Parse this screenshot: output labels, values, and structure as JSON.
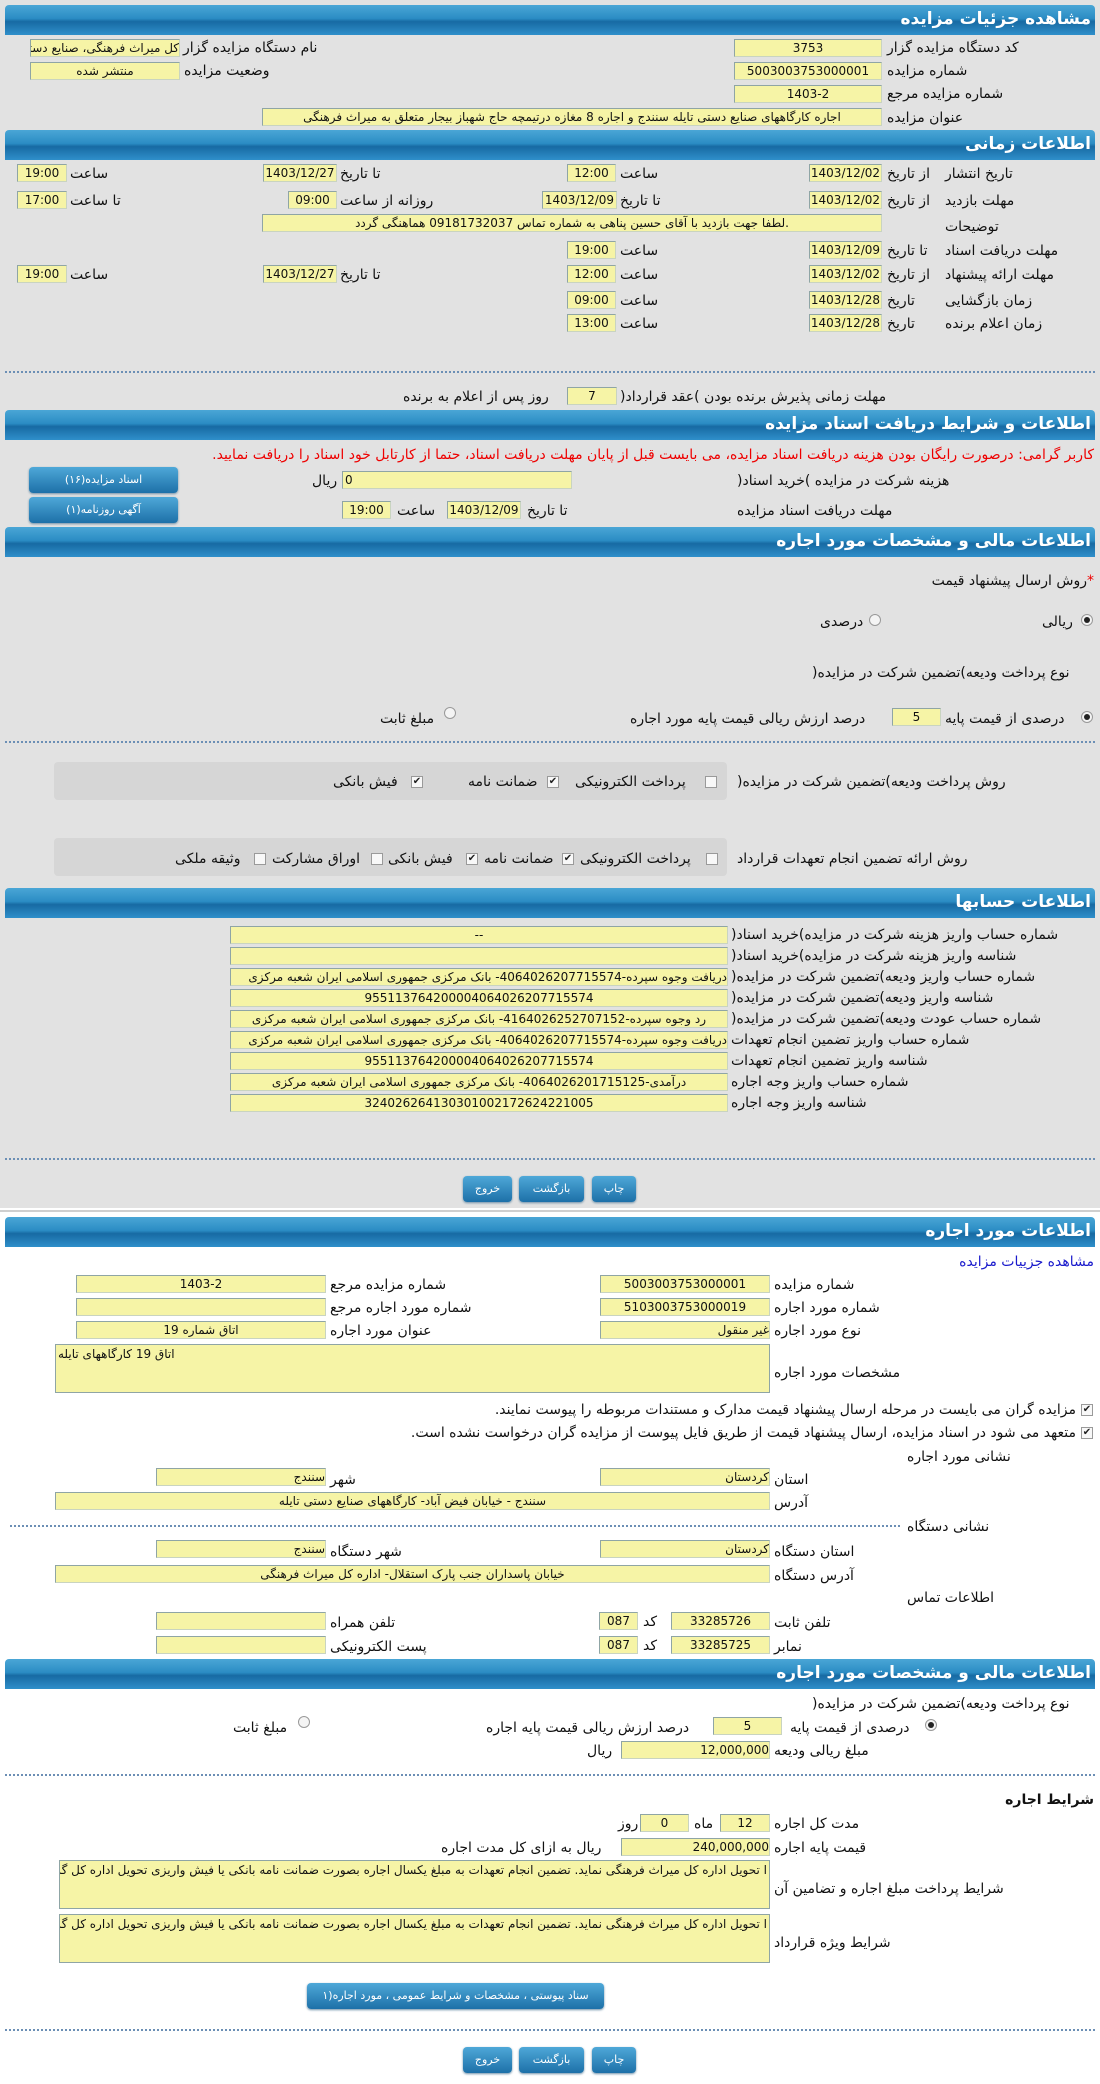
{
  "colors": {
    "header": "#2b8cc4",
    "field_bg": "#f6f4a6",
    "warning": "#ee0000",
    "link": "#1a1acc"
  },
  "s1": {
    "title": "مشاهده جزئیات مزایده",
    "org_code_label": "کد دستگاه مزایده گزار",
    "org_code": "3753",
    "org_name_label": "نام دستگاه مزایده گزار",
    "org_name": "کل میراث فرهنگی، صنایع دستی و گردشگری",
    "auction_no_label": "شماره مزایده",
    "auction_no": "5003003753000001",
    "status_label": "وضعیت مزایده",
    "status": "منتشر شده",
    "ref_no_label": "شماره مزایده مرجع",
    "ref_no": "1403-2",
    "title_label": "عنوان مزایده",
    "auction_title": "اجاره کارگاههای صنایع دستی تایله سنندج و اجاره 8 مغازه درتیمچه حاج شهباز بیجار متعلق به میراث فرهنگی"
  },
  "s2": {
    "title": "اطلاعات زمانی",
    "from_date": "از تاریخ",
    "to_date": "تا تاریخ",
    "date": "تاریخ",
    "time": "ساعت",
    "to_time": "تا ساعت",
    "daily_from": "روزانه از ساعت",
    "publish_label": "تاریخ انتشار",
    "publish_from": "1403/12/02",
    "publish_from_time": "12:00",
    "publish_to": "1403/12/27",
    "publish_to_time": "19:00",
    "visit_label": "مهلت بازدید",
    "visit_from": "1403/12/02",
    "visit_to": "1403/12/09",
    "visit_time_from": "09:00",
    "visit_time_to": "17:00",
    "desc_label": "توضیحات",
    "desc": ".لطفا جهت بازدید با آقای حسین پناهی به شماره تماس 09181732037 هماهنگی گردد",
    "docs_label": "مهلت دریافت اسناد",
    "docs_to": "1403/12/09",
    "docs_time": "19:00",
    "offer_label": "مهلت ارائه پیشنهاد",
    "offer_from": "1403/12/02",
    "offer_from_time": "12:00",
    "offer_to": "1403/12/27",
    "offer_to_time": "19:00",
    "opening_label": "زمان بازگشایی",
    "opening_date": "1403/12/28",
    "opening_time": "09:00",
    "winner_label": "زمان اعلام برنده",
    "winner_date": "1403/12/28",
    "winner_time": "13:00",
    "accept_label": "مهلت زمانی پذیرش برنده بودن )عقد قرارداد(",
    "accept_days": "7",
    "accept_suffix": "روز پس از اعلام به برنده"
  },
  "s3": {
    "title": "اطلاعات و شرایط دریافت اسناد مزایده",
    "warning": "کاربر گرامی: درصورت رایگان بودن هزینه دریافت اسناد مزایده، می بایست قبل از پایان مهلت دریافت اسناد، حتما از کارتابل خود اسناد را دریافت نمایید.",
    "fee_label": "هزینه شرکت در مزایده )خرید اسناد(",
    "fee": "0",
    "rial": "ریال",
    "docs_btn": "اسناد مزایده(۱۶)",
    "deadline_label": "مهلت دریافت اسناد مزایده",
    "to_date": "تا تاریخ",
    "deadline_date": "1403/12/09",
    "time": "ساعت",
    "deadline_time": "19:00",
    "ad_btn": "آگهی روزنامه(۱)"
  },
  "s4": {
    "title": "اطلاعات مالی و مشخصات مورد اجاره",
    "required": "*",
    "price_method_label": "روش ارسال پیشنهاد قیمت",
    "rial_opt": "ریالی",
    "percent_opt": "درصدی",
    "price_method_selected": "ریالی",
    "deposit_type_label": "نوع پرداخت ودیعه)تضمین شرکت در مزایده(",
    "pct_of_base": "درصدی از قیمت پایه",
    "pct": "5",
    "pct_suffix": "درصد ارزش ریالی قیمت پایه مورد اجاره",
    "fixed": "مبلغ ثابت",
    "deposit_selected": "درصدی از قیمت پایه",
    "pay_method_label": "روش پرداخت ودیعه)تضمین شرکت در مزایده(",
    "pay_methods": [
      {
        "label": "پرداخت الکترونیکی",
        "checked": false
      },
      {
        "label": "ضمانت نامه",
        "checked": true
      },
      {
        "label": "فیش بانکی",
        "checked": true
      }
    ],
    "guarantee_label": "روش ارائه تضمین انجام تعهدات قرارداد",
    "guarantees": [
      {
        "label": "پرداخت الکترونیکی",
        "checked": false
      },
      {
        "label": "ضمانت نامه",
        "checked": true
      },
      {
        "label": "فیش بانکی",
        "checked": true
      },
      {
        "label": "اوراق مشارکت",
        "checked": false
      },
      {
        "label": "وثیقه ملکی",
        "checked": false
      }
    ]
  },
  "s5": {
    "title": "اطلاعات حسابها",
    "rows": [
      {
        "label": "شماره حساب واریز هزینه شرکت در مزایده)خرید اسناد(",
        "value": "--"
      },
      {
        "label": "شناسه واریز هزینه شرکت در مزایده)خرید اسناد(",
        "value": ""
      },
      {
        "label": "شماره حساب واریز ودیعه)تضمین شرکت در مزایده(",
        "value": "دریافت وجوه سپرده-4064026207715574- بانک مرکزی جمهوری اسلامی ایران شعبه مرکزی"
      },
      {
        "label": "شناسه واریز ودیعه)تضمین شرکت در مزایده(",
        "value": "955113764200004064026207715574"
      },
      {
        "label": "شماره حساب عودت ودیعه)تضمین شرکت در مزایده(",
        "value": "رد وجوه سپرده-4164026252707152- بانک مرکزی جمهوری اسلامی ایران شعبه مرکزی"
      },
      {
        "label": "شماره حساب واریز تضمین انجام تعهدات",
        "value": "دریافت وجوه سپرده-4064026207715574- بانک مرکزی جمهوری اسلامی ایران شعبه مرکزی"
      },
      {
        "label": "شناسه واریز تضمین انجام تعهدات",
        "value": "955113764200004064026207715574"
      },
      {
        "label": "شماره حساب واریز وجه اجاره",
        "value": "درآمدی-4064026201715125- بانک مرکزی جمهوری اسلامی ایران شعبه مرکزی"
      },
      {
        "label": "شناسه واریز وجه اجاره",
        "value": "324026264130301002172624221005"
      }
    ]
  },
  "buttons": {
    "print": "چاپ",
    "back": "بازگشت",
    "exit": "خروج"
  },
  "s6": {
    "title": "اطلاعات مورد اجاره",
    "link": "مشاهده جزییات مزایده",
    "auction_no_label": "شماره مزایده",
    "auction_no": "5003003753000001",
    "ref_label": "شماره مزایده مرجع",
    "ref": "1403-2",
    "item_no_label": "شماره مورد اجاره",
    "item_no": "5103003753000019",
    "item_ref_label": "شماره مورد اجاره مرجع",
    "item_ref": "",
    "type_label": "نوع مورد اجاره",
    "type": "غیر منقول",
    "item_title_label": "عنوان مورد اجاره",
    "item_title": "اتاق شماره 19",
    "spec_label": "مشخصات مورد اجاره",
    "spec": "اتاق 19 کارگاههای تایله",
    "check1": "مزایده گران می بایست در مرحله ارسال پیشنهاد قیمت مدارک و مستندات مربوطه را پیوست نمایند.",
    "check2": "متعهد می شود در اسناد مزایده، ارسال پیشنهاد قیمت از طریق فایل پیوست از مزایده گران درخواست نشده است.",
    "item_addr_title": "نشانی مورد اجاره",
    "province_label": "استان",
    "province": "کردستان",
    "city_label": "شهر",
    "city": "سنندج",
    "addr_label": "آدرس",
    "addr": "سنندج - خیابان فیض آباد- کارگاههای صنایع دستی تایله",
    "org_addr_title": "نشانی دستگاه",
    "org_province_label": "استان دستگاه",
    "org_province": "کردستان",
    "org_city_label": "شهر دستگاه",
    "org_city": "سنندج",
    "org_addr_label": "آدرس دستگاه",
    "org_addr": "خیابان پاسداران جنب پارک استقلال- اداره کل میراث فرهنگی",
    "contact_title": "اطلاعات تماس",
    "phone_label": "تلفن ثابت",
    "phone": "33285726",
    "code_label": "کد",
    "phone_code": "087",
    "mobile_label": "تلفن همراه",
    "mobile": "",
    "fax_label": "نمابر",
    "fax": "33285725",
    "fax_code": "087",
    "email_label": "پست الکترونیکی",
    "email": ""
  },
  "s7": {
    "title": "اطلاعات مالی و مشخصات مورد اجاره",
    "deposit_type_label": "نوع پرداخت ودیعه)تضمین شرکت در مزایده(",
    "pct_of_base": "درصدی از قیمت پایه",
    "pct": "5",
    "pct_suffix": "درصد ارزش ریالی قیمت پایه اجاره",
    "fixed": "مبلغ ثابت",
    "deposit_amount_label": "مبلغ ریالی ودیعه",
    "deposit_amount": "12,000,000",
    "rial": "ریال",
    "terms_title": "شرایط اجاره",
    "duration_label": "مدت کل اجاره",
    "months": "12",
    "month_unit": "ماه",
    "days": "0",
    "day_unit": "روز",
    "base_price_label": "قیمت پایه اجاره",
    "base_price": "240,000,000",
    "base_price_suffix": "ریال به ازای کل مدت اجاره",
    "payment_terms_label": "شرایط پرداخت مبلغ اجاره و تضامین آن",
    "payment_terms": "ا تحویل اداره کل میراث فرهنگی نماید. تضمین انجام تعهدات به مبلغ یکسال اجاره بصورت ضمانت نامه بانکی یا فیش واریزی تحویل اداره کل گردد.",
    "special_terms_label": "شرایط ویژه قرارداد",
    "special_terms": "ا تحویل اداره کل میراث فرهنگی نماید. تضمین انجام تعهدات به مبلغ یکسال اجاره بصورت ضمانت نامه بانکی یا فیش واریزی تحویل اداره کل گردد.",
    "attach_btn": "سناد پیوستی ، مشخصات و شرایط عمومی ، مورد اجاره(۱"
  }
}
